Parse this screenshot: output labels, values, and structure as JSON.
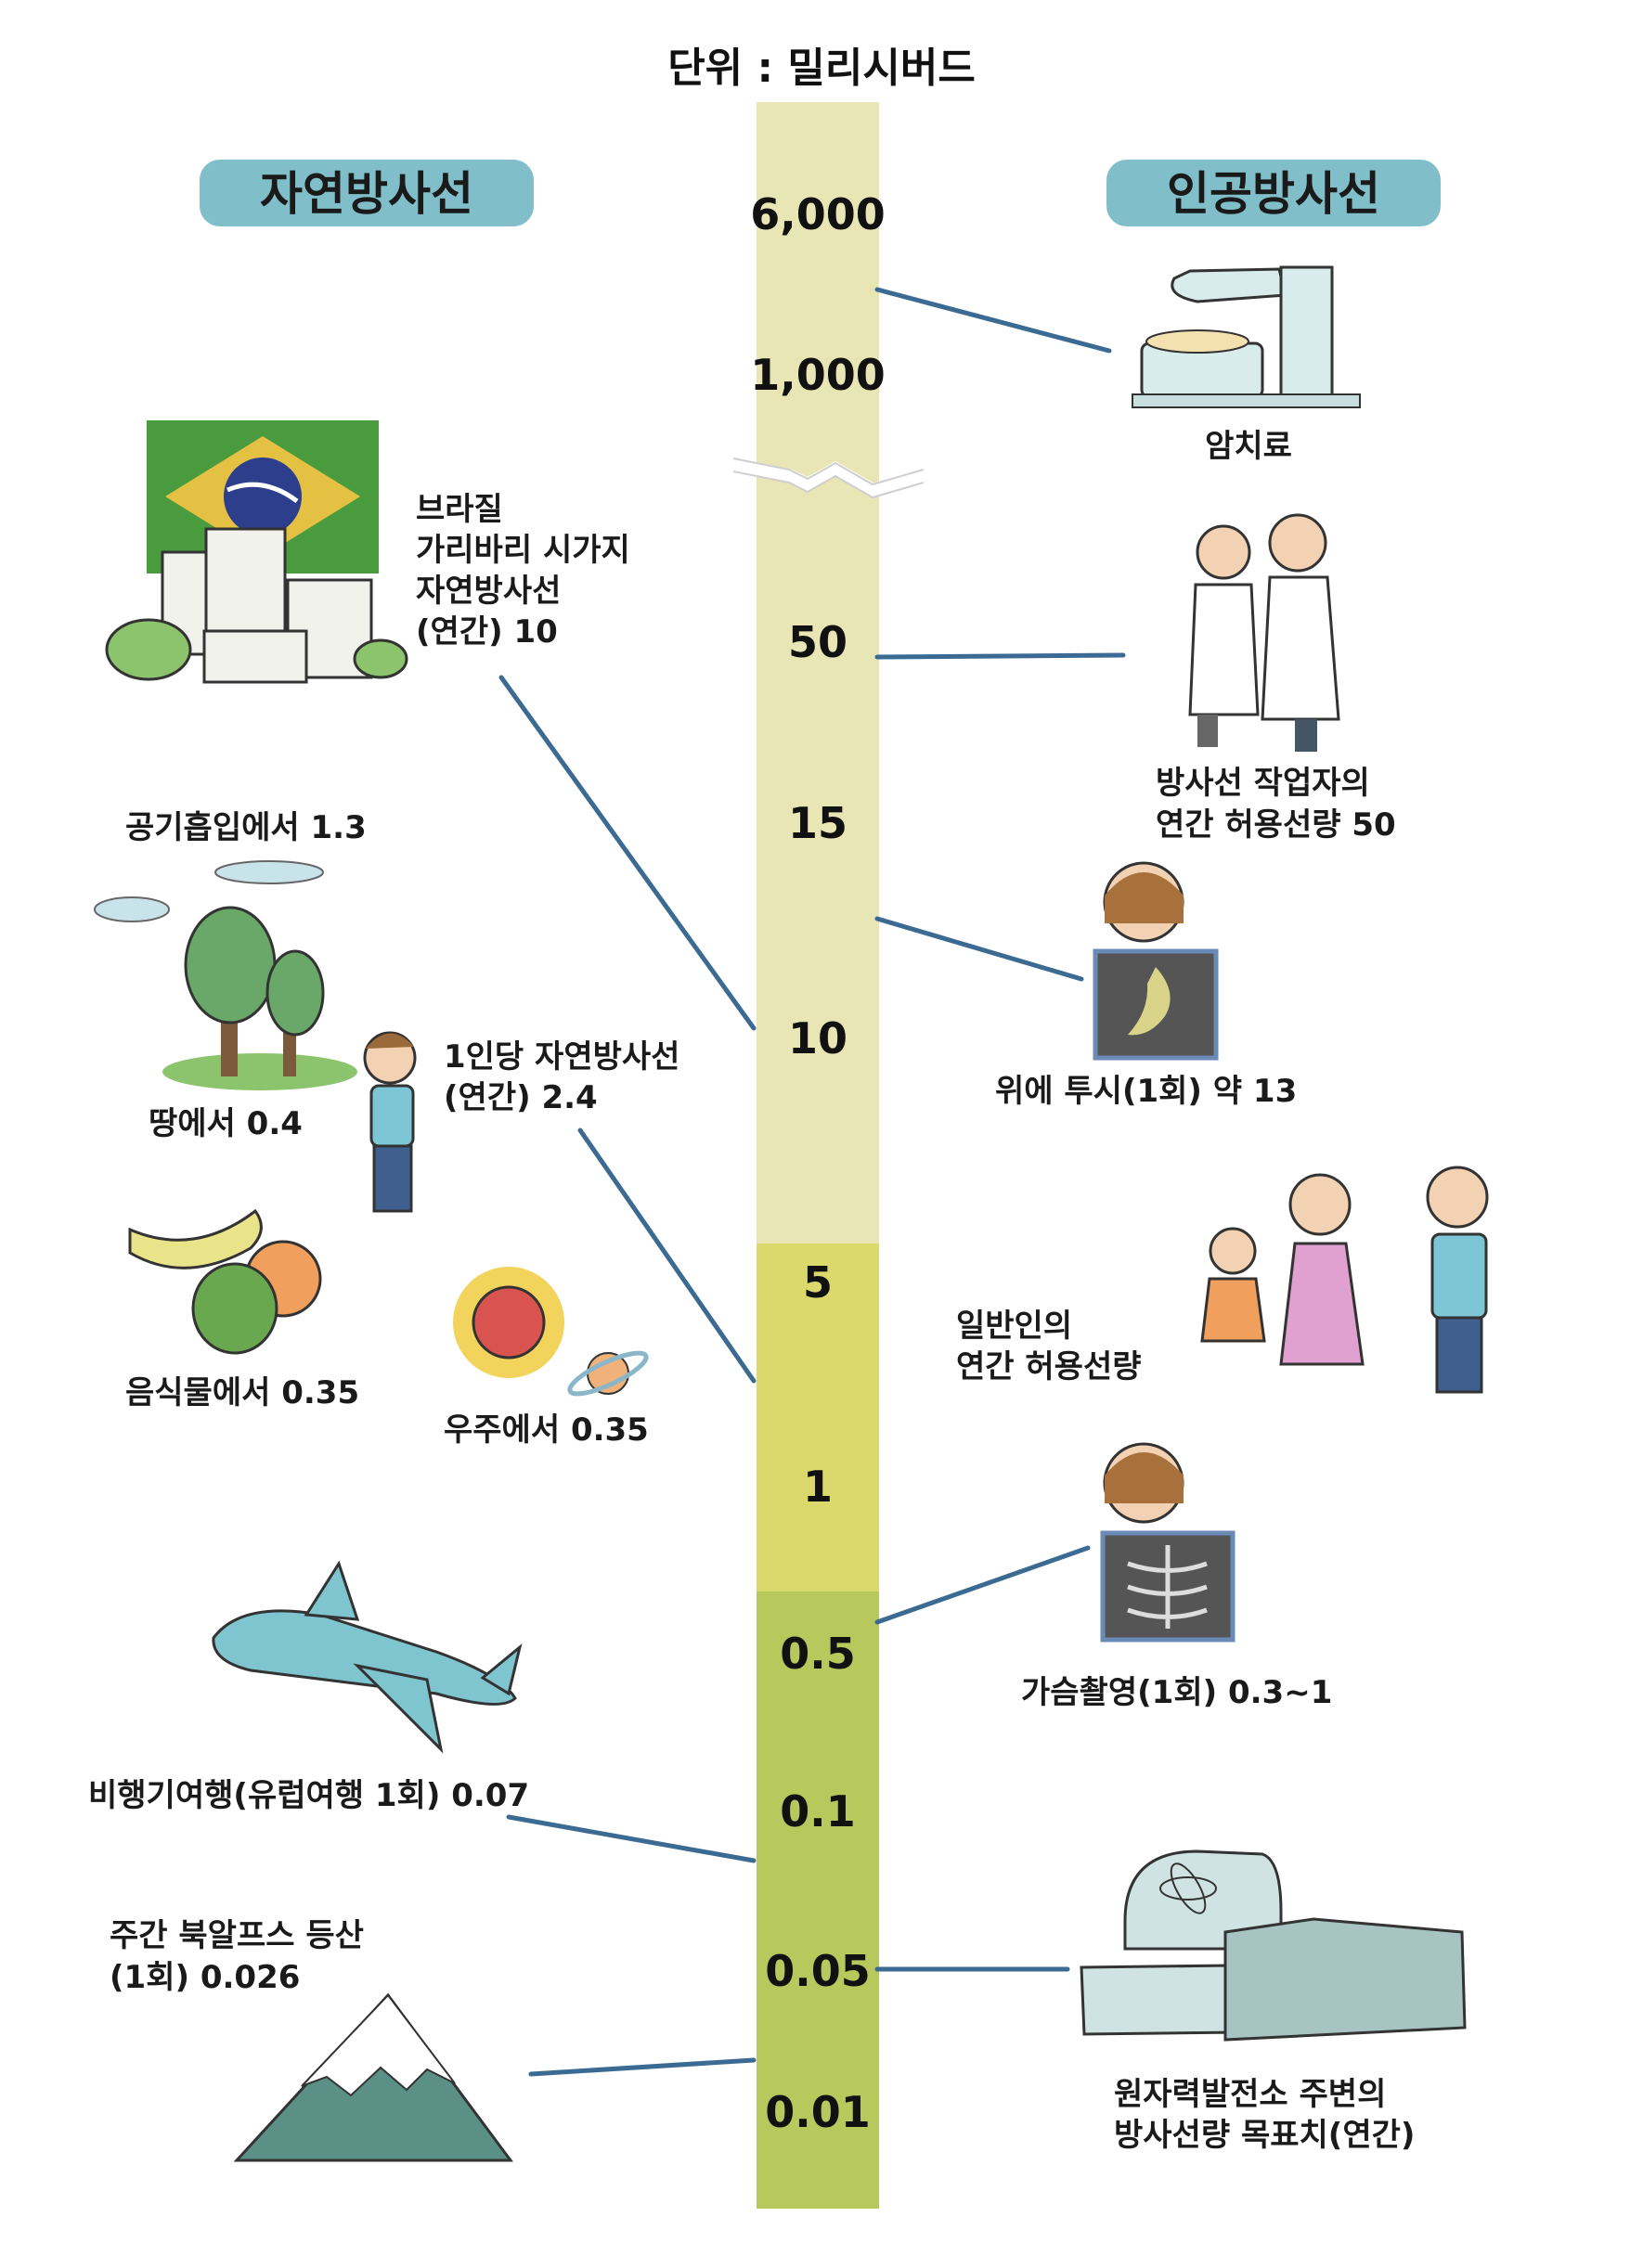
{
  "unit_label": "단위 : 밀리시버드",
  "headers": {
    "natural": "자연방사선",
    "artificial": "인공방사선"
  },
  "scale": {
    "ticks": [
      "6,000",
      "1,000",
      "50",
      "15",
      "10",
      "5",
      "1",
      "0.5",
      "0.1",
      "0.05",
      "0.01"
    ],
    "colors": {
      "high": "#e8e6b4",
      "mid": "#dbd96c",
      "low": "#b7c95d"
    }
  },
  "natural": {
    "brazil": [
      "브라질",
      "가리바리 시가지",
      "자연방사선",
      "(연간) 10"
    ],
    "air": "공기흡입에서 1.3",
    "ground": "땅에서 0.4",
    "per_person": [
      "1인당 자연방사선",
      "(연간) 2.4"
    ],
    "food": "음식물에서 0.35",
    "space": "우주에서 0.35",
    "flight": "비행기여행(유럽여행 1회) 0.07",
    "alps": [
      "주간 북알프스 등산",
      "(1회) 0.026"
    ]
  },
  "artificial": {
    "cancer": "암치료",
    "worker": [
      "방사선 작업자의",
      "연간 허용선량 50"
    ],
    "stomach": "위에 투시(1회) 약 13",
    "public": [
      "일반인의",
      "연간 허용선량"
    ],
    "chest": "가슴촬영(1회) 0.3~1",
    "plant": [
      "원자력발전소 주변의",
      "방사선량 목표치(연간)"
    ]
  },
  "icons": [
    "radiotherapy-machine-icon",
    "doctors-icon",
    "xray-stomach-icon",
    "family-icon",
    "xray-chest-icon",
    "nuclear-plant-icon",
    "brazil-city-icon",
    "cloud-icon",
    "trees-icon",
    "boy-icon",
    "fruits-icon",
    "sun-planet-icon",
    "airplane-icon",
    "mountain-icon"
  ]
}
